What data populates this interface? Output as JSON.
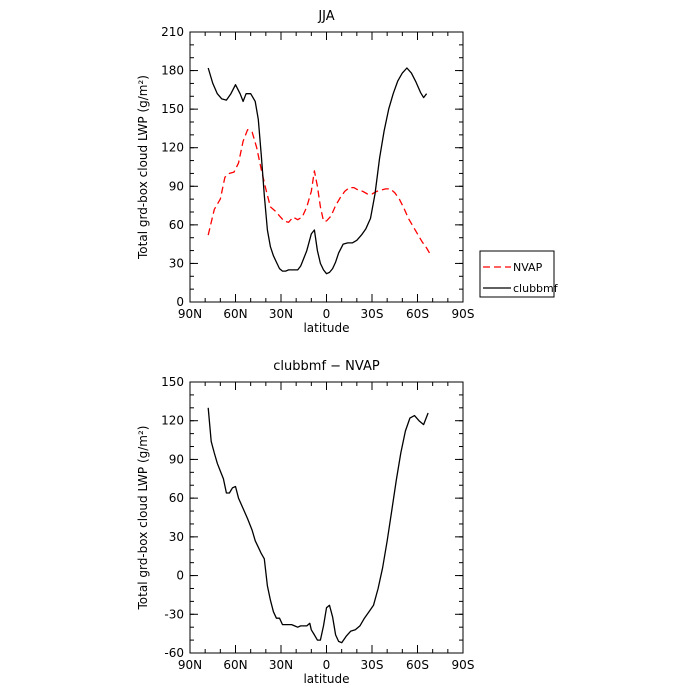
{
  "chart_data": [
    {
      "type": "line",
      "title": "JJA",
      "xlabel": "latitude",
      "ylabel": "Total grd-box cloud LWP (g/m²)",
      "x_ticks": [
        90,
        60,
        30,
        0,
        -30,
        -60,
        -90
      ],
      "x_tick_labels": [
        "90N",
        "60N",
        "30N",
        "0",
        "30S",
        "60S",
        "90S"
      ],
      "xlim": [
        90,
        -90
      ],
      "ylim": [
        0,
        210
      ],
      "y_ticks": [
        0,
        30,
        60,
        90,
        120,
        150,
        180,
        210
      ],
      "legend_position": "right",
      "series": [
        {
          "name": "NVAP",
          "color": "#ff0000",
          "dash": "dashed",
          "points": [
            [
              78,
              52
            ],
            [
              74,
              72
            ],
            [
              70,
              80
            ],
            [
              67,
              97
            ],
            [
              64,
              100
            ],
            [
              61,
              101
            ],
            [
              58,
              108
            ],
            [
              55,
              125
            ],
            [
              52,
              134
            ],
            [
              49,
              132
            ],
            [
              46,
              120
            ],
            [
              43,
              103
            ],
            [
              40,
              88
            ],
            [
              37,
              74
            ],
            [
              34,
              71
            ],
            [
              31,
              67
            ],
            [
              28,
              63
            ],
            [
              25,
              62
            ],
            [
              22,
              66
            ],
            [
              19,
              64
            ],
            [
              16,
              66
            ],
            [
              13,
              74
            ],
            [
              10,
              86
            ],
            [
              8,
              102
            ],
            [
              6,
              90
            ],
            [
              4,
              74
            ],
            [
              2,
              63
            ],
            [
              0,
              63
            ],
            [
              -3,
              67
            ],
            [
              -6,
              75
            ],
            [
              -9,
              81
            ],
            [
              -12,
              86
            ],
            [
              -15,
              89
            ],
            [
              -18,
              89
            ],
            [
              -21,
              87
            ],
            [
              -24,
              86
            ],
            [
              -27,
              84
            ],
            [
              -30,
              84
            ],
            [
              -33,
              86
            ],
            [
              -36,
              87
            ],
            [
              -39,
              88
            ],
            [
              -42,
              88
            ],
            [
              -45,
              85
            ],
            [
              -48,
              80
            ],
            [
              -51,
              73
            ],
            [
              -54,
              65
            ],
            [
              -57,
              59
            ],
            [
              -60,
              53
            ],
            [
              -63,
              47
            ],
            [
              -66,
              42
            ],
            [
              -69,
              36
            ]
          ]
        },
        {
          "name": "clubbmf",
          "color": "#000000",
          "dash": "solid",
          "points": [
            [
              78,
              182
            ],
            [
              75,
              170
            ],
            [
              72,
              162
            ],
            [
              69,
              158
            ],
            [
              66,
              157
            ],
            [
              63,
              162
            ],
            [
              60,
              169
            ],
            [
              57,
              162
            ],
            [
              55,
              156
            ],
            [
              53,
              162
            ],
            [
              50,
              162
            ],
            [
              47,
              156
            ],
            [
              45,
              142
            ],
            [
              43,
              114
            ],
            [
              41,
              83
            ],
            [
              39,
              56
            ],
            [
              37,
              43
            ],
            [
              35,
              36
            ],
            [
              33,
              31
            ],
            [
              31,
              26
            ],
            [
              29,
              24
            ],
            [
              27,
              24
            ],
            [
              25,
              25
            ],
            [
              23,
              25
            ],
            [
              21,
              25
            ],
            [
              19,
              25
            ],
            [
              17,
              28
            ],
            [
              15,
              34
            ],
            [
              13,
              40
            ],
            [
              10,
              53
            ],
            [
              8,
              56
            ],
            [
              6,
              40
            ],
            [
              4,
              30
            ],
            [
              2,
              25
            ],
            [
              0,
              22
            ],
            [
              -2,
              23
            ],
            [
              -4,
              26
            ],
            [
              -6,
              31
            ],
            [
              -8,
              38
            ],
            [
              -11,
              45
            ],
            [
              -14,
              46
            ],
            [
              -17,
              46
            ],
            [
              -20,
              48
            ],
            [
              -23,
              52
            ],
            [
              -26,
              57
            ],
            [
              -29,
              65
            ],
            [
              -32,
              84
            ],
            [
              -35,
              112
            ],
            [
              -38,
              133
            ],
            [
              -41,
              150
            ],
            [
              -44,
              162
            ],
            [
              -47,
              172
            ],
            [
              -50,
              178
            ],
            [
              -53,
              182
            ],
            [
              -56,
              178
            ],
            [
              -59,
              171
            ],
            [
              -62,
              163
            ],
            [
              -64,
              159
            ],
            [
              -66,
              162
            ]
          ]
        }
      ]
    },
    {
      "type": "line",
      "title": "clubbmf − NVAP",
      "xlabel": "latitude",
      "ylabel": "Total grd-box cloud LWP (g/m²)",
      "x_ticks": [
        90,
        60,
        30,
        0,
        -30,
        -60,
        -90
      ],
      "x_tick_labels": [
        "90N",
        "60N",
        "30N",
        "0",
        "30S",
        "60S",
        "90S"
      ],
      "xlim": [
        90,
        -90
      ],
      "ylim": [
        -60,
        150
      ],
      "y_ticks": [
        -60,
        -30,
        0,
        30,
        60,
        90,
        120,
        150
      ],
      "series": [
        {
          "color": "#000000",
          "dash": "solid",
          "points": [
            [
              78,
              130
            ],
            [
              76,
              104
            ],
            [
              74,
              95
            ],
            [
              72,
              87
            ],
            [
              70,
              81
            ],
            [
              68,
              75
            ],
            [
              66,
              64
            ],
            [
              64,
              64
            ],
            [
              62,
              68
            ],
            [
              60,
              69
            ],
            [
              58,
              60
            ],
            [
              55,
              52
            ],
            [
              52,
              44
            ],
            [
              49,
              35
            ],
            [
              47,
              27
            ],
            [
              45,
              22
            ],
            [
              43,
              17
            ],
            [
              41,
              13
            ],
            [
              39,
              -8
            ],
            [
              37,
              -19
            ],
            [
              35,
              -28
            ],
            [
              33,
              -33
            ],
            [
              31,
              -33
            ],
            [
              29,
              -38
            ],
            [
              27,
              -38
            ],
            [
              25,
              -38
            ],
            [
              23,
              -38
            ],
            [
              21,
              -39
            ],
            [
              19,
              -40
            ],
            [
              17,
              -39
            ],
            [
              15,
              -39
            ],
            [
              13,
              -39
            ],
            [
              11,
              -37
            ],
            [
              10,
              -42
            ],
            [
              8,
              -46
            ],
            [
              6,
              -50
            ],
            [
              4,
              -50
            ],
            [
              2,
              -39
            ],
            [
              0,
              -25
            ],
            [
              -2,
              -23
            ],
            [
              -4,
              -32
            ],
            [
              -6,
              -46
            ],
            [
              -8,
              -51
            ],
            [
              -10,
              -52
            ],
            [
              -13,
              -47
            ],
            [
              -16,
              -43
            ],
            [
              -19,
              -42
            ],
            [
              -22,
              -39
            ],
            [
              -25,
              -33
            ],
            [
              -28,
              -28
            ],
            [
              -31,
              -23
            ],
            [
              -34,
              -10
            ],
            [
              -37,
              6
            ],
            [
              -40,
              27
            ],
            [
              -43,
              50
            ],
            [
              -46,
              74
            ],
            [
              -49,
              95
            ],
            [
              -52,
              112
            ],
            [
              -55,
              122
            ],
            [
              -58,
              124
            ],
            [
              -61,
              120
            ],
            [
              -64,
              117
            ],
            [
              -67,
              126
            ]
          ]
        }
      ]
    }
  ]
}
